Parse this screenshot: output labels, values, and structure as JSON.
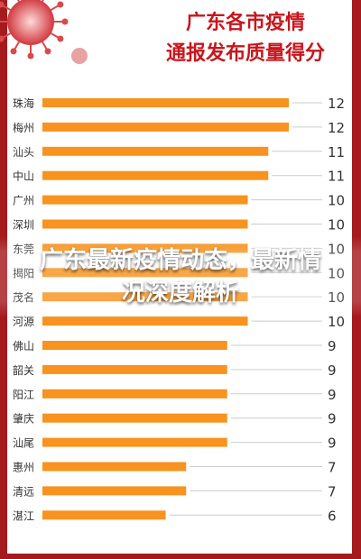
{
  "overlay_title": "广东最新疫情动态，最新情况深度解析",
  "chart_data": {
    "type": "bar",
    "orientation": "horizontal",
    "title_lines": [
      "广东各市疫情",
      "通报发布质量得分"
    ],
    "categories": [
      "珠海",
      "梅州",
      "汕头",
      "中山",
      "广州",
      "深圳",
      "东莞",
      "揭阳",
      "茂名",
      "河源",
      "佛山",
      "韶关",
      "阳江",
      "肇庆",
      "汕尾",
      "惠州",
      "清远",
      "湛江"
    ],
    "values": [
      12,
      12,
      11,
      11,
      10,
      10,
      10,
      10,
      10,
      10,
      9,
      9,
      9,
      9,
      9,
      7,
      7,
      6
    ],
    "data_labels": [
      "12",
      "12",
      "11",
      "11",
      "10",
      "10",
      "10",
      "10",
      "10",
      "10",
      "9",
      "9",
      "9",
      "9",
      "9",
      "7",
      "7",
      "6"
    ],
    "xlim": [
      0,
      12
    ],
    "colors": {
      "bar": "#f7931e",
      "background": "#a51a1d",
      "card": "#ffffff",
      "title": "#c8161d"
    }
  }
}
